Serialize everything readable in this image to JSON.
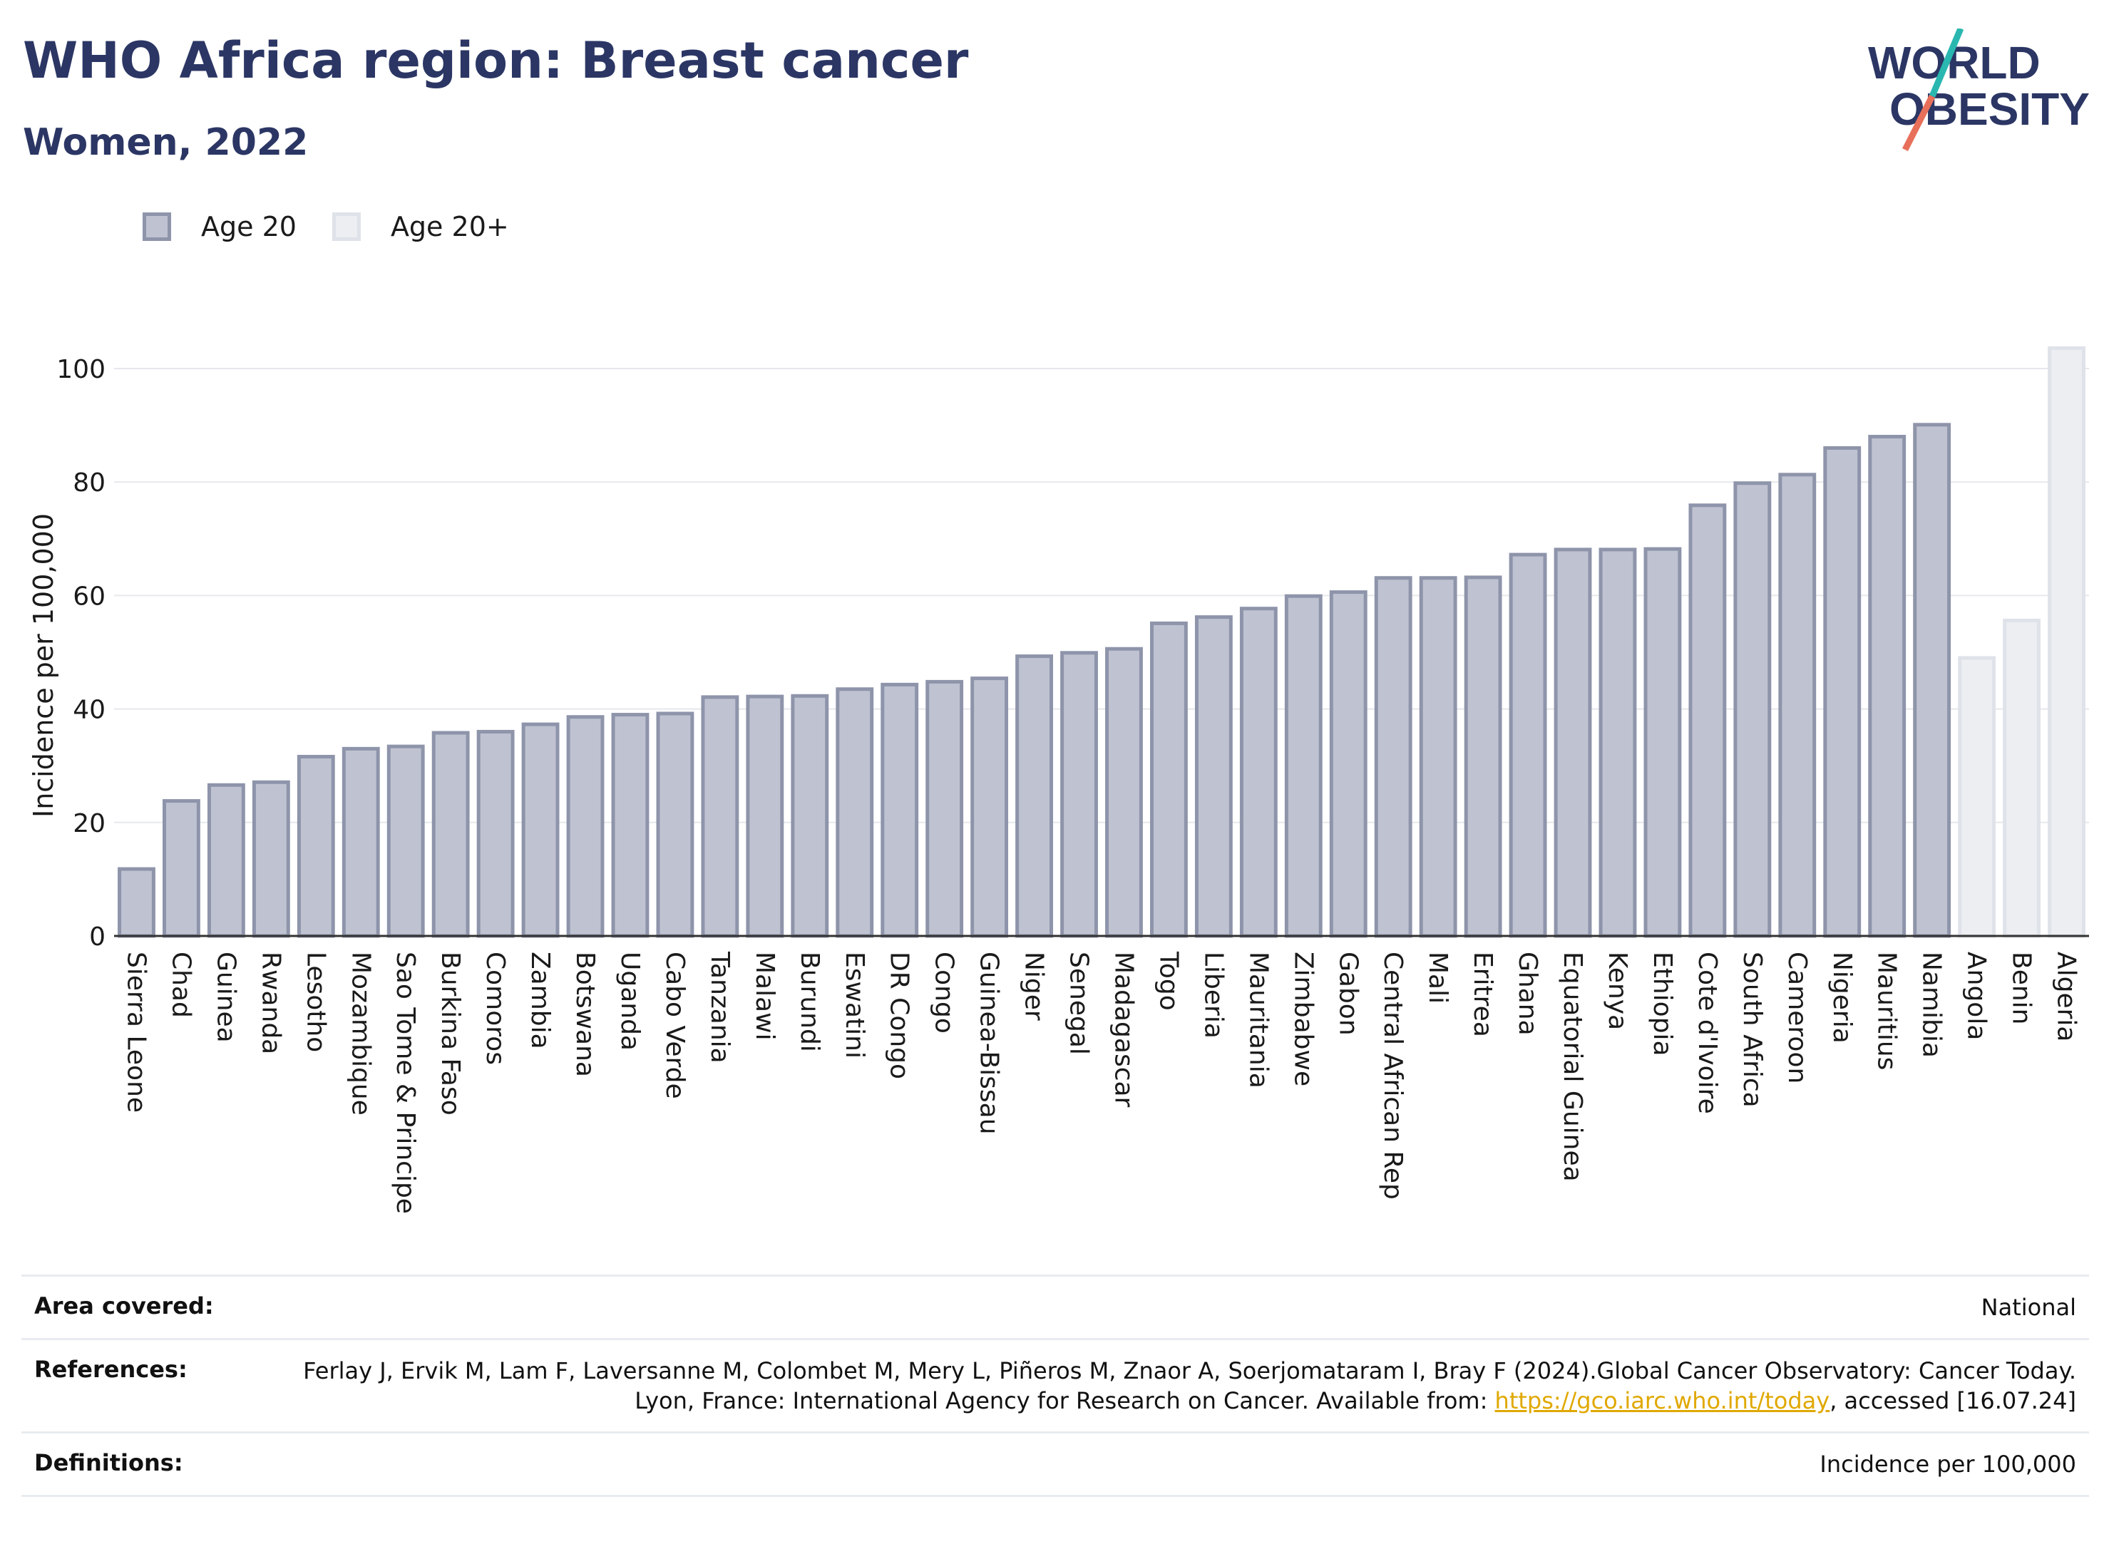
{
  "header": {
    "title": "WHO Africa region: Breast cancer",
    "subtitle": "Women, 2022",
    "logo_line1": "WORLD",
    "logo_line2": "OBESITY"
  },
  "legend": {
    "items": [
      {
        "label": "Age 20",
        "color": "#bfc3d1"
      },
      {
        "label": "Age 20+",
        "color": "#eceef2"
      }
    ]
  },
  "chart_data": {
    "type": "bar",
    "ylabel": "Incidence per 100,000",
    "xlabel": "",
    "ylim": [
      0,
      105
    ],
    "yticks": [
      0,
      20,
      40,
      60,
      80,
      100
    ],
    "grid": true,
    "legend_position": "top-left",
    "colors": {
      "age20": "#bfc3d1",
      "age20_border": "#8e94aa",
      "age20plus": "#eceef2",
      "age20plus_border": "#dfe2e9"
    },
    "categories": [
      "Sierra Leone",
      "Chad",
      "Guinea",
      "Rwanda",
      "Lesotho",
      "Mozambique",
      "Sao Tome & Principe",
      "Burkina Faso",
      "Comoros",
      "Zambia",
      "Botswana",
      "Uganda",
      "Cabo Verde",
      "Tanzania",
      "Malawi",
      "Burundi",
      "Eswatini",
      "DR Congo",
      "Congo",
      "Guinea-Bissau",
      "Niger",
      "Senegal",
      "Madagascar",
      "Togo",
      "Liberia",
      "Mauritania",
      "Zimbabwe",
      "Gabon",
      "Central African Rep",
      "Mali",
      "Eritrea",
      "Ghana",
      "Equatorial Guinea",
      "Kenya",
      "Ethiopia",
      "Cote d'Ivoire",
      "South Africa",
      "Cameroon",
      "Nigeria",
      "Mauritius",
      "Namibia",
      "Angola",
      "Benin",
      "Algeria"
    ],
    "values": [
      11.8,
      23.8,
      26.6,
      27.1,
      31.6,
      33.0,
      33.4,
      35.8,
      36.0,
      37.3,
      38.6,
      39.0,
      39.2,
      42.1,
      42.2,
      42.3,
      43.5,
      44.3,
      44.8,
      45.4,
      49.3,
      49.9,
      50.6,
      55.1,
      56.2,
      57.7,
      59.9,
      60.6,
      63.1,
      63.1,
      63.2,
      67.2,
      68.1,
      68.1,
      68.2,
      75.9,
      79.8,
      81.3,
      86.0,
      88.0,
      90.1,
      49.0,
      55.6,
      103.6
    ],
    "series_group": [
      "Age 20",
      "Age 20",
      "Age 20",
      "Age 20",
      "Age 20",
      "Age 20",
      "Age 20",
      "Age 20",
      "Age 20",
      "Age 20",
      "Age 20",
      "Age 20",
      "Age 20",
      "Age 20",
      "Age 20",
      "Age 20",
      "Age 20",
      "Age 20",
      "Age 20",
      "Age 20",
      "Age 20",
      "Age 20",
      "Age 20",
      "Age 20",
      "Age 20",
      "Age 20",
      "Age 20",
      "Age 20",
      "Age 20",
      "Age 20",
      "Age 20",
      "Age 20",
      "Age 20",
      "Age 20",
      "Age 20",
      "Age 20",
      "Age 20",
      "Age 20",
      "Age 20",
      "Age 20",
      "Age 20",
      "Age 20+",
      "Age 20+",
      "Age 20+"
    ]
  },
  "footer": {
    "area_label": "Area covered:",
    "area_value": "National",
    "refs_label": "References:",
    "refs_text": "Ferlay J, Ervik M, Lam F, Laversanne M, Colombet M, Mery L, Piñeros M, Znaor A, Soerjomataram I, Bray F (2024).Global Cancer Observatory: Cancer Today. Lyon, France: International Agency for Research on Cancer. Available from: ",
    "refs_link": "https://gco.iarc.who.int/today",
    "refs_tail": ", accessed [16.07.24]",
    "def_label": "Definitions:",
    "def_value": "Incidence per 100,000"
  }
}
